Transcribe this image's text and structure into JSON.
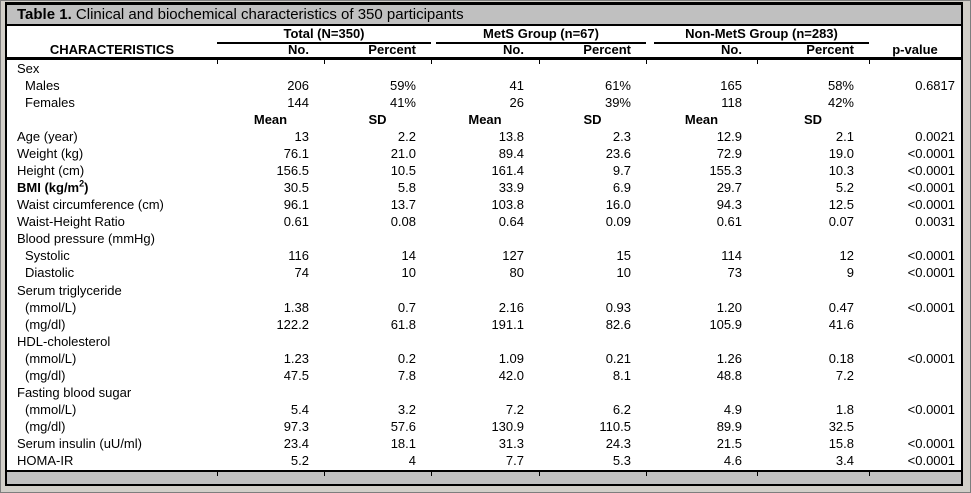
{
  "caption": {
    "label": "Table 1.",
    "text": " Clinical and biochemical characteristics of 350 participants"
  },
  "header": {
    "characteristics": "CHARACTERISTICS",
    "groups": [
      {
        "label": "Total (N=350)"
      },
      {
        "label": "MetS Group (n=67)"
      },
      {
        "label": "Non-MetS Group (n=283)"
      }
    ],
    "subcols": [
      "No.",
      "Percent",
      "No.",
      "Percent",
      "No.",
      "Percent"
    ],
    "pvalue": "p-value"
  },
  "table": {
    "rows": [
      {
        "label": "Sex",
        "cells": [
          "",
          "",
          "",
          "",
          "",
          ""
        ],
        "p": ""
      },
      {
        "label": "Males",
        "indent": true,
        "cells": [
          "206",
          "59%",
          "41",
          "61%",
          "165",
          "58%"
        ],
        "p": "0.6817"
      },
      {
        "label": "Females",
        "indent": true,
        "cells": [
          "144",
          "41%",
          "26",
          "39%",
          "118",
          "42%"
        ],
        "p": ""
      },
      {
        "label": "",
        "center": true,
        "cells": [
          "Mean",
          "SD",
          "Mean",
          "SD",
          "Mean",
          "SD"
        ],
        "p": ""
      },
      {
        "label": "Age (year)",
        "cells": [
          "13",
          "2.2",
          "13.8",
          "2.3",
          "12.9",
          "2.1"
        ],
        "p": "0.0021"
      },
      {
        "label": "Weight (kg)",
        "cells": [
          "76.1",
          "21.0",
          "89.4",
          "23.6",
          "72.9",
          "19.0"
        ],
        "p": "<0.0001"
      },
      {
        "label": "Height (cm)",
        "cells": [
          "156.5",
          "10.5",
          "161.4",
          "9.7",
          "155.3",
          "10.3"
        ],
        "p": "<0.0001"
      },
      {
        "label": "BMI (kg/m",
        "sup": "2",
        "tail": ")",
        "bold": true,
        "cells": [
          "30.5",
          "5.8",
          "33.9",
          "6.9",
          "29.7",
          "5.2"
        ],
        "p": "<0.0001"
      },
      {
        "label": "Waist circumference (cm)",
        "cells": [
          "96.1",
          "13.7",
          "103.8",
          "16.0",
          "94.3",
          "12.5"
        ],
        "p": "<0.0001"
      },
      {
        "label": "Waist-Height Ratio",
        "cells": [
          "0.61",
          "0.08",
          "0.64",
          "0.09",
          "0.61",
          "0.07"
        ],
        "p": "0.0031"
      },
      {
        "label": "Blood pressure (mmHg)",
        "cells": [
          "",
          "",
          "",
          "",
          "",
          ""
        ],
        "p": ""
      },
      {
        "label": "Systolic",
        "indent": true,
        "cells": [
          "116",
          "14",
          "127",
          "15",
          "114",
          "12"
        ],
        "p": "<0.0001"
      },
      {
        "label": "Diastolic",
        "indent": true,
        "cells": [
          "74",
          "10",
          "80",
          "10",
          "73",
          "9"
        ],
        "p": "<0.0001"
      },
      {
        "label": "Serum triglyceride",
        "cells": [
          "",
          "",
          "",
          "",
          "",
          ""
        ],
        "p": ""
      },
      {
        "label": "(mmol/L)",
        "indent": true,
        "cells": [
          "1.38",
          "0.7",
          "2.16",
          "0.93",
          "1.20",
          "0.47"
        ],
        "p": "<0.0001"
      },
      {
        "label": "(mg/dl)",
        "indent": true,
        "cells": [
          "122.2",
          "61.8",
          "191.1",
          "82.6",
          "105.9",
          "41.6"
        ],
        "p": ""
      },
      {
        "label": "HDL-cholesterol",
        "cells": [
          "",
          "",
          "",
          "",
          "",
          ""
        ],
        "p": ""
      },
      {
        "label": "(mmol/L)",
        "indent": true,
        "cells": [
          "1.23",
          "0.2",
          "1.09",
          "0.21",
          "1.26",
          "0.18"
        ],
        "p": "<0.0001"
      },
      {
        "label": "(mg/dl)",
        "indent": true,
        "cells": [
          "47.5",
          "7.8",
          "42.0",
          "8.1",
          "48.8",
          "7.2"
        ],
        "p": ""
      },
      {
        "label": "Fasting blood sugar",
        "cells": [
          "",
          "",
          "",
          "",
          "",
          ""
        ],
        "p": ""
      },
      {
        "label": "(mmol/L)",
        "indent": true,
        "cells": [
          "5.4",
          "3.2",
          "7.2",
          "6.2",
          "4.9",
          "1.8"
        ],
        "p": "<0.0001"
      },
      {
        "label": "(mg/dl)",
        "indent": true,
        "cells": [
          "97.3",
          "57.6",
          "130.9",
          "110.5",
          "89.9",
          "32.5"
        ],
        "p": ""
      },
      {
        "label": "Serum insulin (uU/ml)",
        "cells": [
          "23.4",
          "18.1",
          "31.3",
          "24.3",
          "21.5",
          "15.8"
        ],
        "p": "<0.0001"
      },
      {
        "label": "HOMA-IR",
        "cells": [
          "5.2",
          "4",
          "7.7",
          "5.3",
          "4.6",
          "3.4"
        ],
        "p": "<0.0001"
      }
    ]
  },
  "colors": {
    "bar_bg": "#c0c0c0",
    "page_margin": "#d2cfc9",
    "border": "#000000",
    "table_bg": "#ffffff",
    "text": "#000000"
  }
}
